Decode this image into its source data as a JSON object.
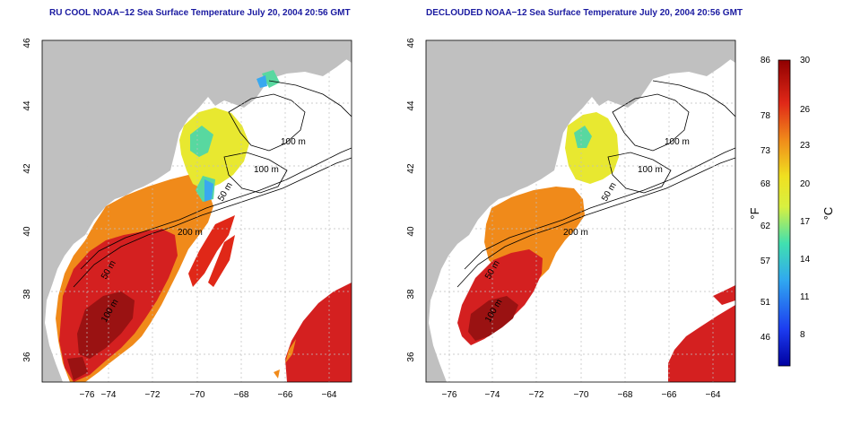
{
  "maps": [
    {
      "title": "RU COOL NOAA−12 Sea Surface Temperature July 20, 2004 20:56 GMT",
      "variant": "cool"
    },
    {
      "title": "DECLOUDED NOAA−12 Sea Surface Temperature July 20, 2004 20:56 GMT",
      "variant": "declouded"
    }
  ],
  "axes": {
    "x_ticks": [
      "−76",
      "−74",
      "−72",
      "−70",
      "−68",
      "−66",
      "−64"
    ],
    "y_ticks": [
      "46",
      "44",
      "42",
      "40",
      "38",
      "36"
    ],
    "lon_range": [
      -77,
      -63
    ],
    "lat_range": [
      35,
      46
    ]
  },
  "contour_labels": [
    "100 m",
    "100 m",
    "50 m",
    "200 m",
    "50 m",
    "100 m"
  ],
  "colorbar": {
    "f_unit": "°F",
    "c_unit": "°C",
    "f_labels": [
      "86",
      "78",
      "73",
      "68",
      "62",
      "57",
      "51",
      "46"
    ],
    "c_labels": [
      "30",
      "26",
      "23",
      "20",
      "17",
      "14",
      "11",
      "8"
    ]
  },
  "colors": {
    "land": "#c0c0c0",
    "title": "#1a1aa0",
    "warm": "#d42020",
    "hot": "#9a1212",
    "mid": "#f08a1a",
    "cool": "#e8e830",
    "cold": "#39a8f0"
  }
}
